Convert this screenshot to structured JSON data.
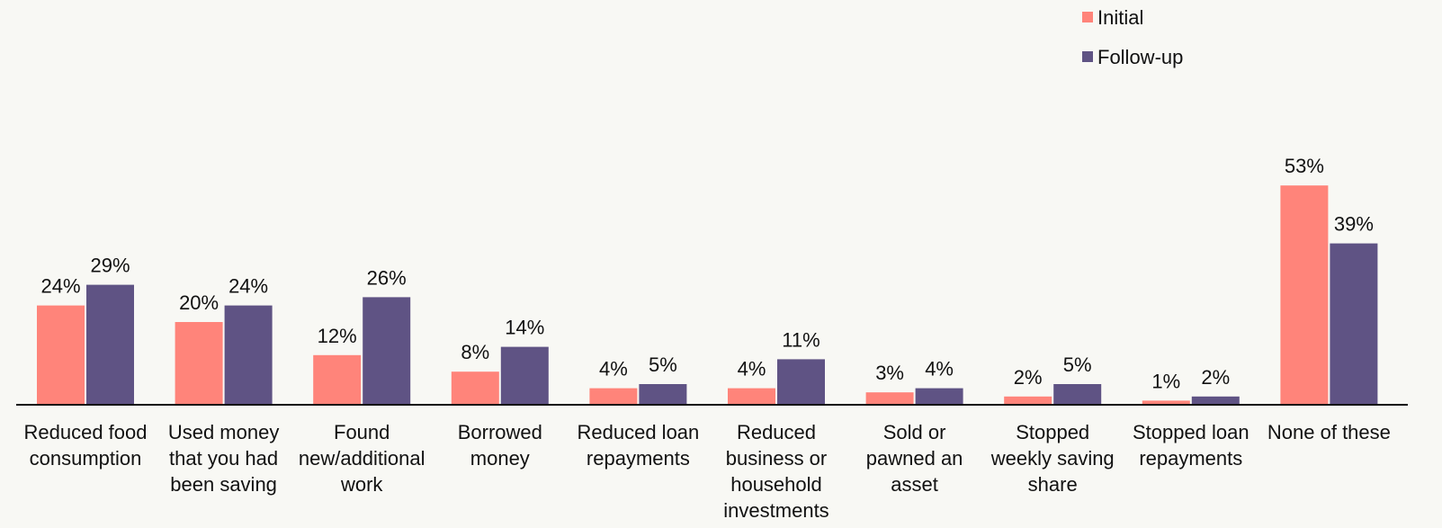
{
  "chart_data": {
    "type": "bar",
    "categories": [
      [
        "Reduced food",
        "consumption"
      ],
      [
        "Used money",
        "that you had",
        "been saving"
      ],
      [
        "Found",
        "new/additional",
        "work"
      ],
      [
        "Borrowed",
        "money"
      ],
      [
        "Reduced loan",
        "repayments"
      ],
      [
        "Reduced",
        "business or",
        "household",
        "investments"
      ],
      [
        "Sold or",
        "pawned an",
        "asset"
      ],
      [
        "Stopped",
        "weekly saving",
        "share"
      ],
      [
        "Stopped loan",
        "repayments"
      ],
      [
        "None of these"
      ]
    ],
    "series": [
      {
        "name": "Initial",
        "color": "#ff847a",
        "values": [
          24,
          20,
          12,
          8,
          4,
          4,
          3,
          2,
          1,
          53
        ]
      },
      {
        "name": "Follow-up",
        "color": "#5f5384",
        "values": [
          29,
          24,
          26,
          14,
          5,
          11,
          4,
          5,
          2,
          39
        ]
      }
    ],
    "value_suffix": "%",
    "ylim": [
      0,
      65
    ],
    "legend": "top-right",
    "grid": false
  }
}
